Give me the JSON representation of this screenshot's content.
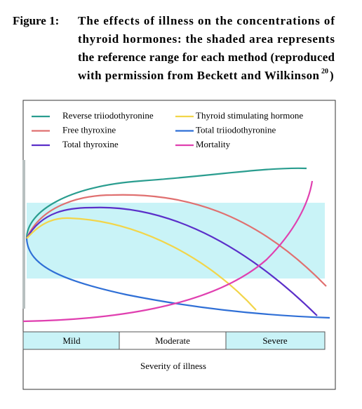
{
  "figure": {
    "label": "Figure 1:",
    "caption_lines": [
      "The effects of illness on the concentrations of",
      "thyroid hormones: the shaded area represents",
      "the reference range for each method (reproduced",
      "with permission from Beckett and Wilkinson"
    ],
    "citation": "20",
    "caption_end": ")"
  },
  "legend": [
    {
      "name": "Reverse triiodothyronine",
      "color": "#2a9d8f"
    },
    {
      "name": "Thyroid stimulating hormone",
      "color": "#f2d54a"
    },
    {
      "name": "Free thyroxine",
      "color": "#e07070"
    },
    {
      "name": "Total triiodothyronine",
      "color": "#2f6fd6"
    },
    {
      "name": "Total thyroxine",
      "color": "#5b2fc9"
    },
    {
      "name": "Mortality",
      "color": "#e040b0"
    }
  ],
  "severity": [
    "Mild",
    "Moderate",
    "Severe"
  ],
  "x_label": "Severity of illness"
}
